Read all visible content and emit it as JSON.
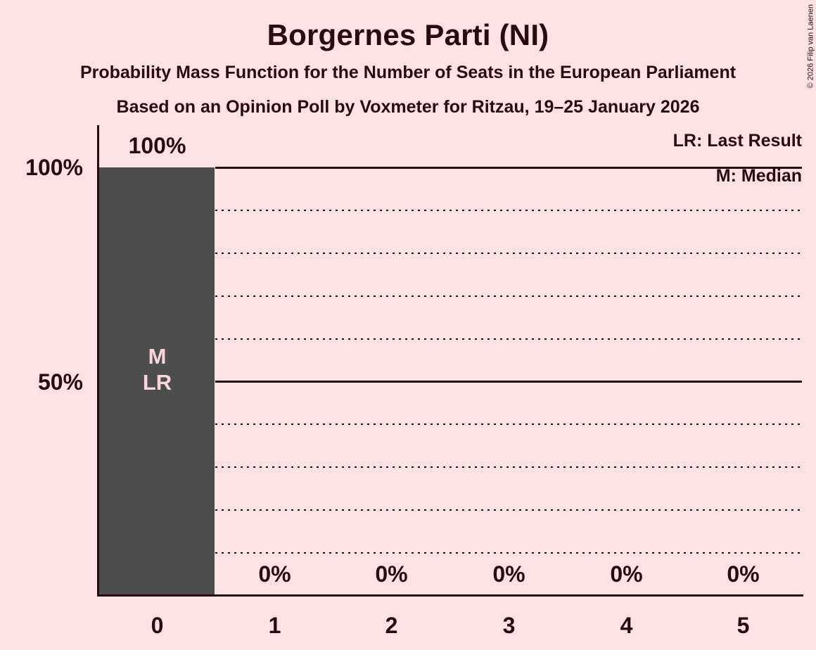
{
  "title": "Borgernes Parti (NI)",
  "subtitle": "Probability Mass Function for the Number of Seats in the European Parliament",
  "poll_details": "Based on an Opinion Poll by Voxmeter for Ritzau, 19–25 January 2026",
  "copyright": "© 2026 Filip van Laenen",
  "legend": {
    "lr": "LR: Last Result",
    "m": "M: Median"
  },
  "colors": {
    "background": "#FCE1E5",
    "bar": "#4D4D4D",
    "text": "#2B0B12",
    "bar_annotation": "#F8D7DC"
  },
  "chart_data": {
    "type": "bar",
    "title": "Borgernes Parti (NI)",
    "categories": [
      "0",
      "1",
      "2",
      "3",
      "4",
      "5"
    ],
    "values": [
      100,
      0,
      0,
      0,
      0,
      0
    ],
    "value_labels": [
      "100%",
      "0%",
      "0%",
      "0%",
      "0%",
      "0%"
    ],
    "ylim": [
      0,
      100
    ],
    "y_tick_labels": [
      {
        "value": 100,
        "label": "100%"
      },
      {
        "value": 50,
        "label": "50%"
      }
    ],
    "solid_gridlines": [
      100,
      50
    ],
    "dotted_gridlines": [
      90,
      80,
      70,
      60,
      40,
      30,
      20,
      10
    ],
    "legend_position": "top-right",
    "bar_annotations": [
      {
        "category": "0",
        "labels": [
          "M",
          "LR"
        ]
      }
    ]
  }
}
